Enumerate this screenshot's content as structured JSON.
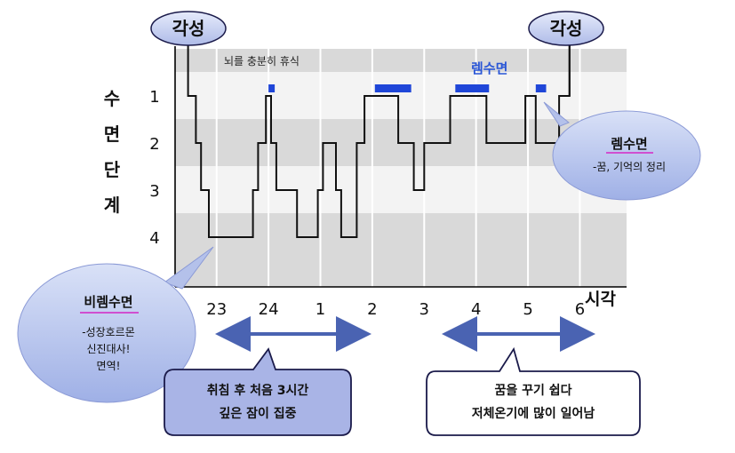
{
  "chart_data": {
    "type": "line",
    "title": "",
    "ylabel": "수면단계",
    "xlabel": "시각",
    "y_ticks": [
      "1",
      "2",
      "3",
      "4"
    ],
    "x_ticks": [
      "23",
      "24",
      "1",
      "2",
      "3",
      "4",
      "5",
      "6"
    ],
    "ylim": [
      0,
      5
    ],
    "xlim": [
      22.2,
      30.9
    ],
    "grid_bands": true,
    "series": [
      {
        "points": [
          {
            "x": 22.4,
            "y": 0
          },
          {
            "x": 22.45,
            "y": 0
          },
          {
            "x": 22.45,
            "y": 1
          },
          {
            "x": 22.6,
            "y": 1
          },
          {
            "x": 22.6,
            "y": 2
          },
          {
            "x": 22.7,
            "y": 2
          },
          {
            "x": 22.7,
            "y": 3
          },
          {
            "x": 22.85,
            "y": 3
          },
          {
            "x": 22.85,
            "y": 4
          },
          {
            "x": 23.7,
            "y": 4
          },
          {
            "x": 23.7,
            "y": 3
          },
          {
            "x": 23.8,
            "y": 3
          },
          {
            "x": 23.8,
            "y": 2
          },
          {
            "x": 23.95,
            "y": 2
          },
          {
            "x": 23.95,
            "y": 1
          },
          {
            "x": 24.05,
            "y": 1
          },
          {
            "x": 24.05,
            "y": 2
          },
          {
            "x": 24.15,
            "y": 2
          },
          {
            "x": 24.15,
            "y": 3
          },
          {
            "x": 24.55,
            "y": 3
          },
          {
            "x": 24.55,
            "y": 4
          },
          {
            "x": 24.95,
            "y": 4
          },
          {
            "x": 24.95,
            "y": 3
          },
          {
            "x": 25.05,
            "y": 3
          },
          {
            "x": 25.05,
            "y": 2
          },
          {
            "x": 25.3,
            "y": 2
          },
          {
            "x": 25.3,
            "y": 3
          },
          {
            "x": 25.4,
            "y": 3
          },
          {
            "x": 25.4,
            "y": 4
          },
          {
            "x": 25.7,
            "y": 4
          },
          {
            "x": 25.7,
            "y": 2
          },
          {
            "x": 25.85,
            "y": 2
          },
          {
            "x": 25.85,
            "y": 1
          },
          {
            "x": 26.5,
            "y": 1
          },
          {
            "x": 26.5,
            "y": 2
          },
          {
            "x": 26.8,
            "y": 2
          },
          {
            "x": 26.8,
            "y": 3
          },
          {
            "x": 27.0,
            "y": 3
          },
          {
            "x": 27.0,
            "y": 2
          },
          {
            "x": 27.5,
            "y": 2
          },
          {
            "x": 27.5,
            "y": 1
          },
          {
            "x": 28.2,
            "y": 1
          },
          {
            "x": 28.2,
            "y": 2
          },
          {
            "x": 28.95,
            "y": 2
          },
          {
            "x": 28.95,
            "y": 1
          },
          {
            "x": 29.15,
            "y": 1
          },
          {
            "x": 29.15,
            "y": 2
          },
          {
            "x": 29.6,
            "y": 2
          },
          {
            "x": 29.6,
            "y": 1
          },
          {
            "x": 29.8,
            "y": 1
          },
          {
            "x": 29.8,
            "y": 0
          }
        ]
      }
    ],
    "rem_segments": [
      [
        24.0,
        24.12
      ],
      [
        26.05,
        26.75
      ],
      [
        27.6,
        28.25
      ],
      [
        29.15,
        29.35
      ]
    ],
    "annotations": {
      "wake_left": "각성",
      "wake_right": "각성",
      "rest": "뇌를 충분히 휴식",
      "rem_top": "렘수면",
      "rem_bubble_title": "렘수면",
      "rem_bubble_text": "-꿈, 기억의 정리",
      "nonrem_bubble_title": "비렘수면",
      "nonrem_bubble_lines": [
        "-성장호르몬",
        "신진대사!",
        "면역!"
      ],
      "box_left_lines": [
        "취침 후 처음 3시간",
        "깊은 잠이 집중"
      ],
      "box_right_lines": [
        "꿈을 꾸기 쉽다",
        "저체온기에 많이 일어남"
      ]
    }
  }
}
